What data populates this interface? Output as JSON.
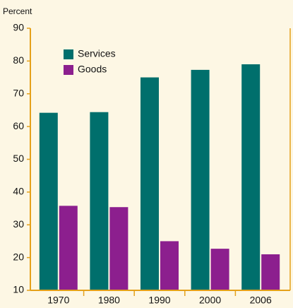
{
  "chart_data": {
    "type": "bar",
    "y_label": "Percent",
    "categories": [
      "1970",
      "1980",
      "1990",
      "2000",
      "2006"
    ],
    "series": [
      {
        "name": "Services",
        "color": "#006f6c",
        "values": [
          64.2,
          64.4,
          75,
          77.3,
          79
        ]
      },
      {
        "name": "Goods",
        "color": "#8c1f8e",
        "values": [
          35.8,
          35.4,
          25,
          22.7,
          21
        ]
      }
    ],
    "ylim": [
      10,
      90
    ],
    "yticks": [
      10,
      20,
      30,
      40,
      50,
      60,
      70,
      80,
      90
    ],
    "legend": "upper left",
    "grid": false
  }
}
